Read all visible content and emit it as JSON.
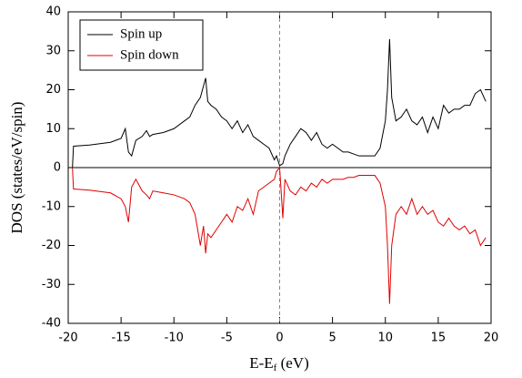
{
  "chart_data": {
    "type": "line",
    "xlabel": [
      "E-E",
      "f",
      " (eV)"
    ],
    "ylabel": "DOS (states/eV/spin)",
    "x": [
      -19.6,
      -19.5,
      -18,
      -16,
      -15,
      -14.6,
      -14.3,
      -14,
      -13.6,
      -13,
      -12.6,
      -12.3,
      -12,
      -11,
      -10,
      -9,
      -8.5,
      -8,
      -7.5,
      -7.2,
      -7,
      -6.8,
      -6.5,
      -6,
      -5.5,
      -5,
      -4.5,
      -4,
      -3.5,
      -3,
      -2.5,
      -2,
      -1.5,
      -1,
      -0.5,
      -0.3,
      0,
      0.3,
      0.5,
      1,
      1.5,
      2,
      2.5,
      3,
      3.5,
      4,
      4.5,
      5,
      5.5,
      6,
      6.5,
      7,
      7.5,
      8,
      8.5,
      9,
      9.5,
      10,
      10.2,
      10.4,
      10.6,
      11,
      11.5,
      12,
      12.5,
      13,
      13.5,
      14,
      14.5,
      15,
      15.5,
      16,
      16.5,
      17,
      17.5,
      18,
      18.5,
      19,
      19.5
    ],
    "series": [
      {
        "name": "Spin up",
        "color": "#000000",
        "values": [
          0,
          5.5,
          5.8,
          6.5,
          7.5,
          10,
          4,
          3,
          7,
          8,
          9.5,
          8,
          8.5,
          9,
          10,
          12,
          13,
          16,
          18,
          21,
          23,
          17,
          16,
          15,
          13,
          12,
          10,
          12,
          9,
          11,
          8,
          7,
          6,
          5,
          2,
          3,
          0.5,
          1,
          3,
          6,
          8,
          10,
          9,
          7,
          9,
          6,
          5,
          6,
          5,
          4,
          4,
          3.5,
          3,
          3,
          3,
          3,
          5,
          12,
          20,
          33,
          18,
          12,
          13,
          15,
          12,
          11,
          13,
          9,
          13,
          10,
          16,
          14,
          15,
          15,
          16,
          16,
          19,
          20,
          17
        ]
      },
      {
        "name": "Spin down",
        "color": "#e00000",
        "values": [
          0,
          -5.5,
          -5.8,
          -6.5,
          -8,
          -10,
          -14,
          -5,
          -3,
          -6,
          -7,
          -8,
          -6,
          -6.5,
          -7,
          -8,
          -9,
          -12,
          -20,
          -15,
          -22,
          -17,
          -18,
          -16,
          -14,
          -12,
          -14,
          -10,
          -11,
          -8,
          -12,
          -6,
          -5,
          -4,
          -3,
          -1,
          0,
          -13,
          -3,
          -6,
          -7,
          -5,
          -6,
          -4,
          -5,
          -3,
          -4,
          -3,
          -3,
          -3,
          -2.5,
          -2.5,
          -2,
          -2,
          -2,
          -2,
          -4,
          -10,
          -20,
          -35,
          -20,
          -12,
          -10,
          -12,
          -8,
          -12,
          -10,
          -12,
          -11,
          -14,
          -15,
          -13,
          -15,
          -16,
          -15,
          -17,
          -16,
          -20,
          -18
        ]
      }
    ],
    "xlim": [
      -20,
      20
    ],
    "xticks": [
      -20,
      -15,
      -10,
      -5,
      0,
      5,
      10,
      15,
      20
    ],
    "ylim": [
      -40,
      40
    ],
    "yticks": [
      -40,
      -30,
      -20,
      -10,
      0,
      10,
      20,
      30,
      40
    ],
    "legend": "upper left"
  }
}
